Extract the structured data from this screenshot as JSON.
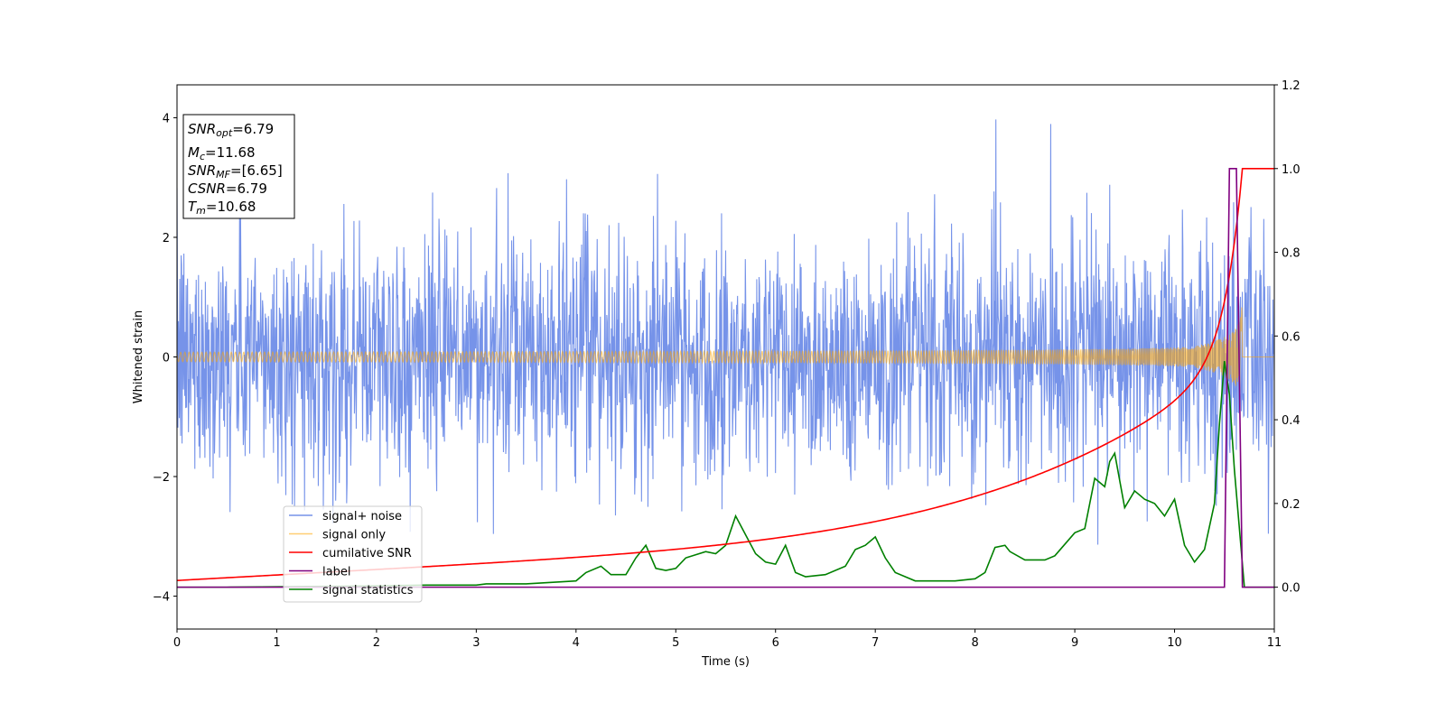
{
  "chart_data": {
    "type": "line",
    "xlabel": "Time (s)",
    "ylabel": "Whitened strain",
    "xlim": [
      0,
      11
    ],
    "ylim_left": [
      -4.55,
      4.55
    ],
    "ylim_right": [
      -0.1,
      1.2
    ],
    "xticks": [
      "0",
      "1",
      "2",
      "3",
      "4",
      "5",
      "6",
      "7",
      "8",
      "9",
      "10",
      "11"
    ],
    "yticks_left": [
      "4",
      "2",
      "0",
      "−2",
      "−4"
    ],
    "yticks_left_values": [
      4,
      2,
      0,
      -2,
      -4
    ],
    "yticks_right": [
      "1.2",
      "1.0",
      "0.8",
      "0.6",
      "0.4",
      "0.2",
      "0.0"
    ],
    "yticks_right_values": [
      1.2,
      1.0,
      0.8,
      0.6,
      0.4,
      0.2,
      0.0
    ],
    "legend_position": "lower-left",
    "info_box": {
      "snr_opt": {
        "base": "SNR",
        "sub": "opt",
        "value": "=6.79"
      },
      "mc": {
        "base": "M",
        "sub": "c",
        "value": "=11.68"
      },
      "snr_mf": {
        "base": "SNR",
        "sub": "MF",
        "value": "=[6.65]"
      },
      "csnr": {
        "base": "CSNR",
        "value": "=6.79"
      },
      "tm": {
        "base": "T",
        "sub": "m",
        "value": "=10.68"
      }
    },
    "series": [
      {
        "name": "signal+ noise",
        "color": "#4169e1",
        "axis": "left",
        "kind": "noise",
        "std": 1.0
      },
      {
        "name": "signal only",
        "color": "#ffa500",
        "axis": "left",
        "kind": "chirp",
        "merger_time": 10.68
      },
      {
        "name": "cumilative SNR",
        "color": "#ff0000",
        "axis": "right",
        "x": [
          0,
          1,
          2,
          3,
          4,
          5,
          6,
          7,
          8,
          9,
          9.5,
          10,
          10.3,
          10.5,
          10.6,
          10.68,
          10.7,
          11
        ],
        "y": [
          0.016,
          0.045,
          0.069,
          0.092,
          0.118,
          0.145,
          0.176,
          0.216,
          0.265,
          0.34,
          0.4,
          0.5,
          0.61,
          0.75,
          0.86,
          1.0,
          1.0,
          1.0
        ]
      },
      {
        "name": "label",
        "color": "#800080",
        "axis": "right",
        "x": [
          0,
          10.5,
          10.55,
          10.62,
          10.65,
          10.68,
          11
        ],
        "y": [
          0,
          0,
          1.0,
          1.0,
          0.5,
          0,
          0
        ]
      },
      {
        "name": "signal statistics",
        "color": "#008000",
        "axis": "right",
        "x": [
          0,
          0.5,
          1,
          1.5,
          2,
          2.5,
          3,
          3.1,
          3.5,
          4,
          4.1,
          4.25,
          4.35,
          4.5,
          4.6,
          4.7,
          4.8,
          4.9,
          5,
          5.1,
          5.3,
          5.4,
          5.5,
          5.6,
          5.8,
          5.9,
          6,
          6.1,
          6.2,
          6.3,
          6.5,
          6.7,
          6.8,
          6.9,
          7,
          7.1,
          7.2,
          7.4,
          7.6,
          7.8,
          8,
          8.1,
          8.2,
          8.3,
          8.35,
          8.5,
          8.7,
          8.8,
          9,
          9.1,
          9.2,
          9.3,
          9.35,
          9.4,
          9.5,
          9.6,
          9.7,
          9.8,
          9.9,
          10,
          10.1,
          10.2,
          10.3,
          10.4,
          10.45,
          10.5,
          10.55,
          10.6,
          10.7,
          11
        ],
        "y": [
          0.0,
          0.0,
          0.001,
          0.002,
          0.003,
          0.005,
          0.005,
          0.008,
          0.008,
          0.015,
          0.035,
          0.05,
          0.03,
          0.03,
          0.07,
          0.1,
          0.045,
          0.04,
          0.045,
          0.07,
          0.085,
          0.08,
          0.1,
          0.17,
          0.08,
          0.06,
          0.055,
          0.1,
          0.035,
          0.025,
          0.03,
          0.05,
          0.09,
          0.1,
          0.12,
          0.07,
          0.035,
          0.015,
          0.015,
          0.015,
          0.02,
          0.035,
          0.095,
          0.1,
          0.085,
          0.065,
          0.065,
          0.075,
          0.13,
          0.14,
          0.26,
          0.24,
          0.3,
          0.32,
          0.19,
          0.23,
          0.21,
          0.2,
          0.17,
          0.21,
          0.1,
          0.06,
          0.09,
          0.2,
          0.39,
          0.54,
          0.46,
          0.28,
          0.0,
          0.0
        ]
      }
    ]
  }
}
